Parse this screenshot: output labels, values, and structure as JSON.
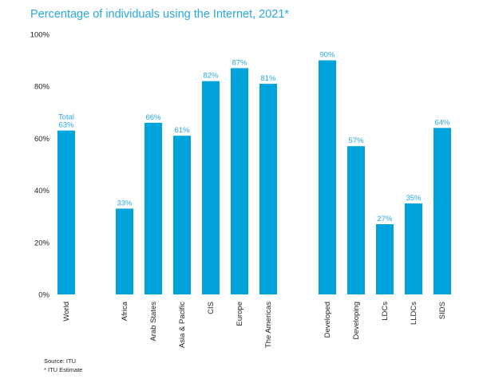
{
  "chart_data": {
    "type": "bar",
    "title": "Percentage of individuals using the Internet, 2021*",
    "categories": [
      "World",
      "Africa",
      "Arab States",
      "Asia & Pacific",
      "CIS",
      "Europe",
      "The Americas",
      "Developed",
      "Developing",
      "LDCs",
      "LLDCs",
      "SIDS"
    ],
    "values": [
      63,
      33,
      66,
      61,
      82,
      87,
      81,
      90,
      57,
      27,
      35,
      64
    ],
    "data_labels": [
      "Total\n63%",
      "33%",
      "66%",
      "61%",
      "82%",
      "87%",
      "81%",
      "90%",
      "57%",
      "27%",
      "35%",
      "64%"
    ],
    "yticks": [
      "0%",
      "20%",
      "40%",
      "60%",
      "80%",
      "100%"
    ],
    "ylim": [
      0,
      100
    ],
    "grid": false,
    "bar_color": "#00a3dc",
    "text_color": "#29a8de",
    "xlabel": "",
    "ylabel": ""
  },
  "footer": {
    "source": "Source: ITU",
    "note": "* ITU Estimate"
  }
}
